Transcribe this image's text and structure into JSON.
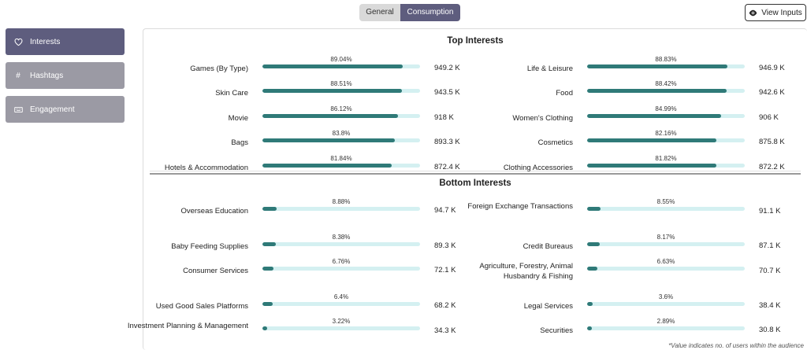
{
  "tabs": {
    "general": "General",
    "consumption": "Consumption"
  },
  "view_inputs": {
    "label": "View Inputs",
    "icon": "eye-icon"
  },
  "sidebar": {
    "items": [
      {
        "label": "Interests",
        "icon": "heart-icon",
        "active": true
      },
      {
        "label": "Hashtags",
        "icon": "hash-icon",
        "active": false
      },
      {
        "label": "Engagement",
        "icon": "keyboard-icon",
        "active": false
      }
    ]
  },
  "top_title": "Top Interests",
  "bottom_title": "Bottom Interests",
  "top_interests": [
    {
      "label": "Games (By Type)",
      "pct": "89.04%",
      "value": 89.04,
      "count": "949.2 K"
    },
    {
      "label": "Life & Leisure",
      "pct": "88.83%",
      "value": 88.83,
      "count": "946.9 K"
    },
    {
      "label": "Skin Care",
      "pct": "88.51%",
      "value": 88.51,
      "count": "943.5 K"
    },
    {
      "label": "Food",
      "pct": "88.42%",
      "value": 88.42,
      "count": "942.6 K"
    },
    {
      "label": "Movie",
      "pct": "86.12%",
      "value": 86.12,
      "count": "918 K"
    },
    {
      "label": "Women's Clothing",
      "pct": "84.99%",
      "value": 84.99,
      "count": "906 K"
    },
    {
      "label": "Bags",
      "pct": "83.8%",
      "value": 83.8,
      "count": "893.3 K"
    },
    {
      "label": "Cosmetics",
      "pct": "82.16%",
      "value": 82.16,
      "count": "875.8 K"
    },
    {
      "label": "Hotels & Accommodation",
      "pct": "81.84%",
      "value": 81.84,
      "count": "872.4 K"
    },
    {
      "label": "Clothing Accessories",
      "pct": "81.82%",
      "value": 81.82,
      "count": "872.2 K"
    }
  ],
  "bottom_interests": [
    {
      "label": "Overseas Education",
      "pct": "8.88%",
      "value": 8.88,
      "count": "94.7 K"
    },
    {
      "label": "Foreign Exchange Transactions",
      "pct": "8.55%",
      "value": 8.55,
      "count": "91.1 K"
    },
    {
      "label": "Baby Feeding Supplies",
      "pct": "8.38%",
      "value": 8.38,
      "count": "89.3 K"
    },
    {
      "label": "Credit Bureaus",
      "pct": "8.17%",
      "value": 8.17,
      "count": "87.1 K"
    },
    {
      "label": "Consumer Services",
      "pct": "6.76%",
      "value": 6.76,
      "count": "72.1 K"
    },
    {
      "label": "Agriculture, Forestry, Animal Husbandry & Fishing",
      "pct": "6.63%",
      "value": 6.63,
      "count": "70.7 K"
    },
    {
      "label": "Used Good Sales Platforms",
      "pct": "6.4%",
      "value": 6.4,
      "count": "68.2 K"
    },
    {
      "label": "Legal Services",
      "pct": "3.6%",
      "value": 3.6,
      "count": "38.4 K"
    },
    {
      "label": "Investment Planning & Management",
      "pct": "3.22%",
      "value": 3.22,
      "count": "34.3 K"
    },
    {
      "label": "Securities",
      "pct": "2.89%",
      "value": 2.89,
      "count": "30.8 K"
    }
  ],
  "footnote": "*Value indicates no. of users within the audience",
  "colors": {
    "accent": "#5e5d7e",
    "bar_fill": "#2f7a78",
    "bar_track": "#d4f0f1",
    "inactive": "#9b9aa4"
  }
}
